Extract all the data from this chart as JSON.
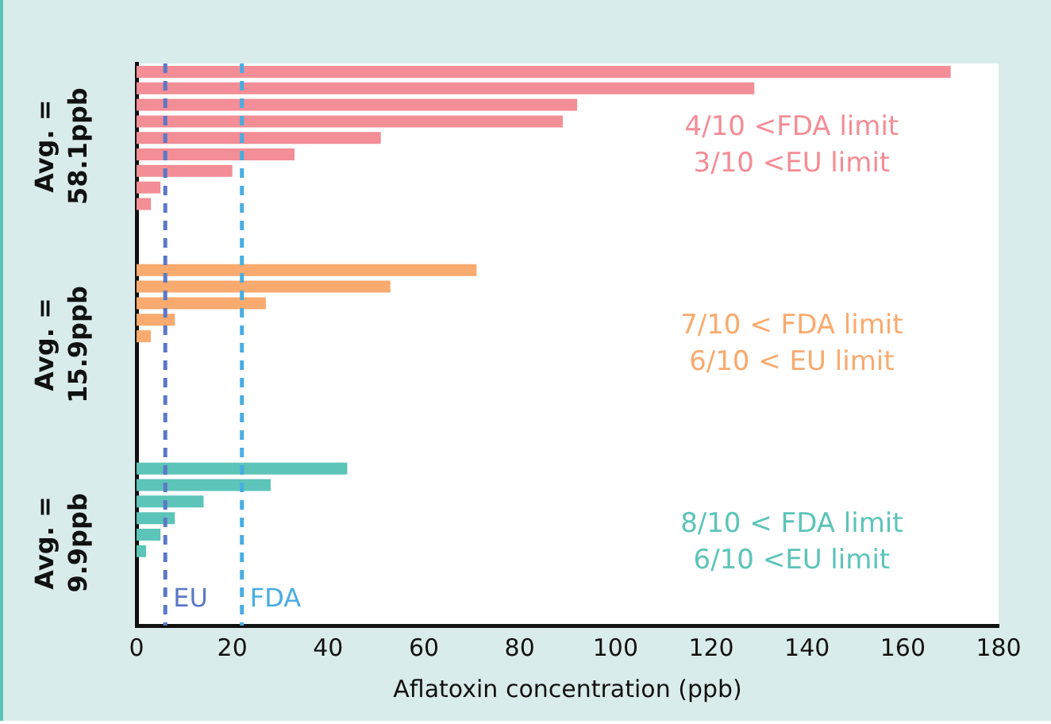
{
  "chart_data": {
    "type": "bar",
    "orientation": "horizontal",
    "xlabel": "Aflatoxin concentration (ppb)",
    "categories": [
      null,
      null,
      null,
      null,
      null,
      null,
      null,
      null,
      null,
      null,
      null,
      null,
      null,
      null,
      null,
      null,
      null,
      null,
      null,
      null,
      null,
      null,
      null,
      null,
      null,
      null,
      null,
      null,
      null,
      null,
      null,
      null,
      null,
      null
    ],
    "series": [
      {
        "color": "#f38d96",
        "values": [
          170,
          129,
          92,
          89,
          51,
          33,
          20,
          5,
          3,
          0,
          null,
          null,
          null,
          null,
          null,
          null,
          null,
          null,
          null,
          null,
          null,
          null,
          null,
          null,
          null,
          null,
          null,
          null,
          null,
          null,
          null,
          null,
          null,
          null
        ]
      },
      {
        "color": "#f9aa6e",
        "values": [
          null,
          null,
          null,
          null,
          null,
          null,
          null,
          null,
          null,
          null,
          null,
          null,
          71,
          53,
          27,
          8,
          3,
          0,
          0,
          0,
          0,
          0,
          null,
          null,
          null,
          null,
          null,
          null,
          null,
          null,
          null,
          null,
          null,
          null
        ]
      },
      {
        "color": "#5cc4b8",
        "values": [
          null,
          null,
          null,
          null,
          null,
          null,
          null,
          null,
          null,
          null,
          null,
          null,
          null,
          null,
          null,
          null,
          null,
          null,
          null,
          null,
          null,
          null,
          null,
          null,
          44,
          28,
          14,
          8,
          5,
          2,
          0,
          0,
          0,
          0
        ]
      }
    ],
    "xlim": [
      0,
      180
    ],
    "xticks": [
      0,
      20,
      40,
      60,
      80,
      100,
      120,
      140,
      160,
      180
    ],
    "tick_labels": "x",
    "grid": false,
    "legend": false,
    "ref_lines": [
      {
        "axis": "x",
        "value": 6,
        "label": "EU",
        "color": "#5b78c6",
        "line_style": "dashed"
      },
      {
        "axis": "x",
        "value": 22,
        "label": "FDA",
        "color": "#48ade2",
        "line_style": "dashed"
      }
    ],
    "annotations": [
      "Avg. =\n58.1ppb",
      "Avg. =\n15.9ppb",
      "Avg. =\n9.9ppb",
      "4/10 <FDA limit\n3/10 <EU limit",
      "7/10 < FDA limit\n6/10 < EU limit",
      "8/10 < FDA limit\n6/10 <EU limit"
    ]
  }
}
